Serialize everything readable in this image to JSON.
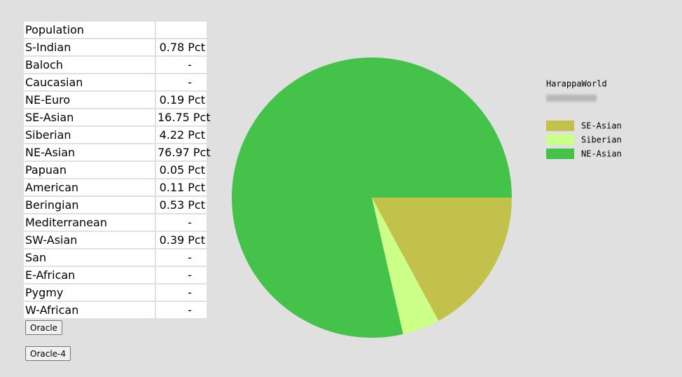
{
  "table": {
    "header": "Population",
    "rows": [
      [
        "S-Indian",
        "0.78 Pct"
      ],
      [
        "Baloch",
        "-"
      ],
      [
        "Caucasian",
        "-"
      ],
      [
        "NE-Euro",
        "0.19 Pct"
      ],
      [
        "SE-Asian",
        "16.75 Pct"
      ],
      [
        "Siberian",
        "4.22 Pct"
      ],
      [
        "NE-Asian",
        "76.97 Pct"
      ],
      [
        "Papuan",
        "0.05 Pct"
      ],
      [
        "American",
        "0.11 Pct"
      ],
      [
        "Beringian",
        "0.53 Pct"
      ],
      [
        "Mediterranean",
        "-"
      ],
      [
        "SW-Asian",
        "0.39 Pct"
      ],
      [
        "San",
        "-"
      ],
      [
        "E-African",
        "-"
      ],
      [
        "Pygmy",
        "-"
      ],
      [
        "W-African",
        "-"
      ]
    ]
  },
  "buttons": [
    "Oracle",
    "Oracle-4"
  ],
  "chart_data": {
    "type": "pie",
    "title": "HarappaWorld",
    "categories": [
      "SE-Asian",
      "Siberian",
      "NE-Asian"
    ],
    "values": [
      16.75,
      4.22,
      76.97
    ],
    "colors": [
      "#c2c14b",
      "#ccff88",
      "#44c24a"
    ]
  }
}
